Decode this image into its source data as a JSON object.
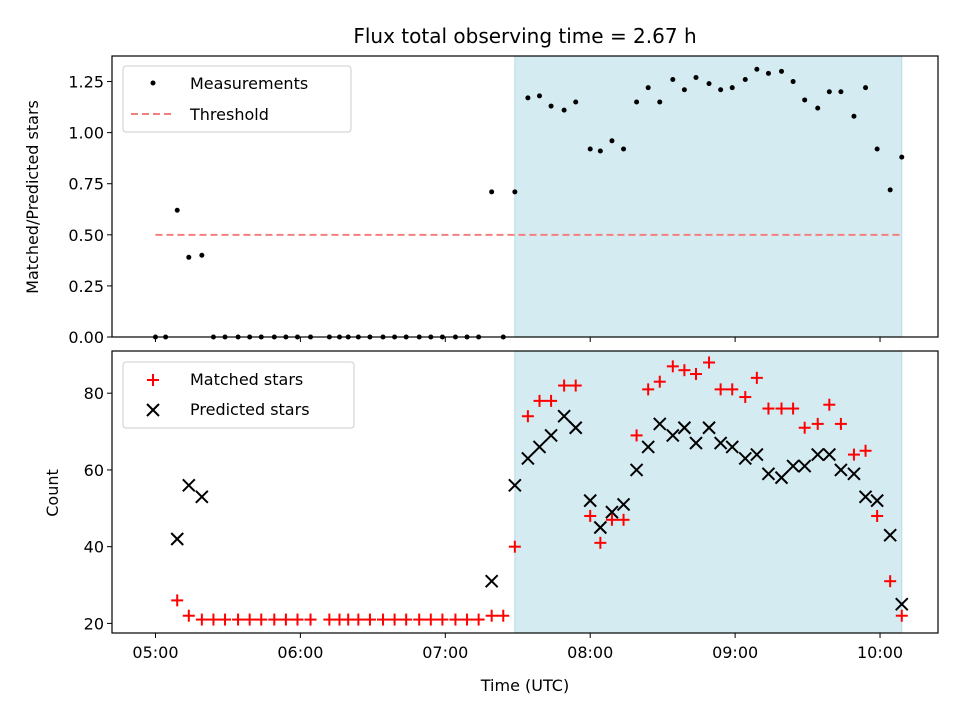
{
  "chart_data": [
    {
      "type": "scatter",
      "title": "Flux total observing time = 2.67 h",
      "xlabel": "",
      "ylabel": "Matched/Predicted stars",
      "ylim": [
        0,
        1.375
      ],
      "yticks": [
        "0.00",
        "0.25",
        "0.50",
        "0.75",
        "1.00",
        "1.25"
      ],
      "ytick_values": [
        0,
        0.25,
        0.5,
        0.75,
        1.0,
        1.25
      ],
      "xlim_hours": [
        4.7,
        10.4
      ],
      "xtick_values": [
        5,
        6,
        7,
        8,
        9,
        10
      ],
      "shaded_interval_hours": [
        7.48,
        10.15
      ],
      "shade_color": "#d4ebf1",
      "legend": {
        "placement": "top-left",
        "entries": [
          "Measurements",
          "Threshold"
        ]
      },
      "threshold": {
        "name": "Threshold",
        "value": 0.5,
        "color": "#f47f7f",
        "x_range_hours": [
          5.0,
          10.15
        ]
      },
      "series": [
        {
          "name": "Measurements",
          "color": "#000000",
          "x_hours": [
            5.0,
            5.07,
            5.15,
            5.23,
            5.32,
            5.4,
            5.48,
            5.57,
            5.65,
            5.73,
            5.82,
            5.9,
            5.98,
            6.07,
            6.2,
            6.27,
            6.33,
            6.4,
            6.48,
            6.57,
            6.65,
            6.73,
            6.82,
            6.9,
            6.98,
            7.07,
            7.15,
            7.23,
            7.32,
            7.4,
            7.48,
            7.57,
            7.65,
            7.73,
            7.82,
            7.9,
            8.0,
            8.07,
            8.15,
            8.23,
            8.32,
            8.4,
            8.48,
            8.57,
            8.65,
            8.73,
            8.82,
            8.9,
            8.98,
            9.07,
            9.15,
            9.23,
            9.32,
            9.4,
            9.48,
            9.57,
            9.65,
            9.73,
            9.82,
            9.9,
            9.98,
            10.07,
            10.15
          ],
          "y": [
            0.0,
            0.0,
            0.62,
            0.39,
            0.4,
            0.0,
            0.0,
            0.0,
            0.0,
            0.0,
            0.0,
            0.0,
            0.0,
            0.0,
            0.0,
            0.0,
            0.0,
            0.0,
            0.0,
            0.0,
            0.0,
            0.0,
            0.0,
            0.0,
            0.0,
            0.0,
            0.0,
            0.0,
            0.71,
            0.0,
            0.71,
            1.17,
            1.18,
            1.13,
            1.11,
            1.15,
            0.92,
            0.91,
            0.96,
            0.92,
            1.15,
            1.22,
            1.15,
            1.26,
            1.21,
            1.27,
            1.24,
            1.21,
            1.22,
            1.26,
            1.31,
            1.29,
            1.3,
            1.25,
            1.16,
            1.12,
            1.2,
            1.2,
            1.08,
            1.22,
            0.92,
            0.72,
            0.88
          ]
        }
      ]
    },
    {
      "type": "scatter",
      "title": "",
      "xlabel": "Time (UTC)",
      "ylabel": "Count",
      "ylim": [
        17.5,
        91
      ],
      "yticks": [
        "20",
        "40",
        "60",
        "80"
      ],
      "ytick_values": [
        20,
        40,
        60,
        80
      ],
      "xlim_hours": [
        4.7,
        10.4
      ],
      "xtick_values": [
        5,
        6,
        7,
        8,
        9,
        10
      ],
      "xticks": [
        "05:00",
        "06:00",
        "07:00",
        "08:00",
        "09:00",
        "10:00"
      ],
      "shaded_interval_hours": [
        7.48,
        10.15
      ],
      "shade_color": "#d4ebf1",
      "legend": {
        "placement": "top-left",
        "entries": [
          "Matched stars",
          "Predicted stars"
        ]
      },
      "series": [
        {
          "name": "Matched stars",
          "marker": "plus",
          "color": "#ff0000",
          "x_hours": [
            5.15,
            5.23,
            5.32,
            5.4,
            5.48,
            5.57,
            5.65,
            5.73,
            5.82,
            5.9,
            5.98,
            6.07,
            6.2,
            6.27,
            6.33,
            6.4,
            6.48,
            6.57,
            6.65,
            6.73,
            6.82,
            6.9,
            6.98,
            7.07,
            7.15,
            7.23,
            7.32,
            7.4,
            7.48,
            7.57,
            7.65,
            7.73,
            7.82,
            7.9,
            8.0,
            8.07,
            8.15,
            8.23,
            8.32,
            8.4,
            8.48,
            8.57,
            8.65,
            8.73,
            8.82,
            8.9,
            8.98,
            9.07,
            9.15,
            9.23,
            9.32,
            9.4,
            9.48,
            9.57,
            9.65,
            9.73,
            9.82,
            9.9,
            9.98,
            10.07,
            10.15
          ],
          "y": [
            26,
            22,
            21,
            21,
            21,
            21,
            21,
            21,
            21,
            21,
            21,
            21,
            21,
            21,
            21,
            21,
            21,
            21,
            21,
            21,
            21,
            21,
            21,
            21,
            21,
            21,
            22,
            22,
            40,
            74,
            78,
            78,
            82,
            82,
            48,
            41,
            47,
            47,
            69,
            81,
            83,
            87,
            86,
            85,
            88,
            81,
            81,
            79,
            84,
            76,
            76,
            76,
            71,
            72,
            77,
            72,
            64,
            65,
            48,
            31,
            22
          ]
        },
        {
          "name": "Predicted stars",
          "marker": "x",
          "color": "#000000",
          "x_hours": [
            5.15,
            5.23,
            5.32,
            7.32,
            7.48,
            7.57,
            7.65,
            7.73,
            7.82,
            7.9,
            8.0,
            8.07,
            8.15,
            8.23,
            8.32,
            8.4,
            8.48,
            8.57,
            8.65,
            8.73,
            8.82,
            8.9,
            8.98,
            9.07,
            9.15,
            9.23,
            9.32,
            9.4,
            9.48,
            9.57,
            9.65,
            9.73,
            9.82,
            9.9,
            9.98,
            10.07,
            10.15
          ],
          "y": [
            42,
            56,
            53,
            31,
            56,
            63,
            66,
            69,
            74,
            71,
            52,
            45,
            49,
            51,
            60,
            66,
            72,
            69,
            71,
            67,
            71,
            67,
            66,
            63,
            64,
            59,
            58,
            61,
            61,
            64,
            64,
            60,
            59,
            53,
            52,
            43,
            25
          ]
        }
      ]
    }
  ]
}
